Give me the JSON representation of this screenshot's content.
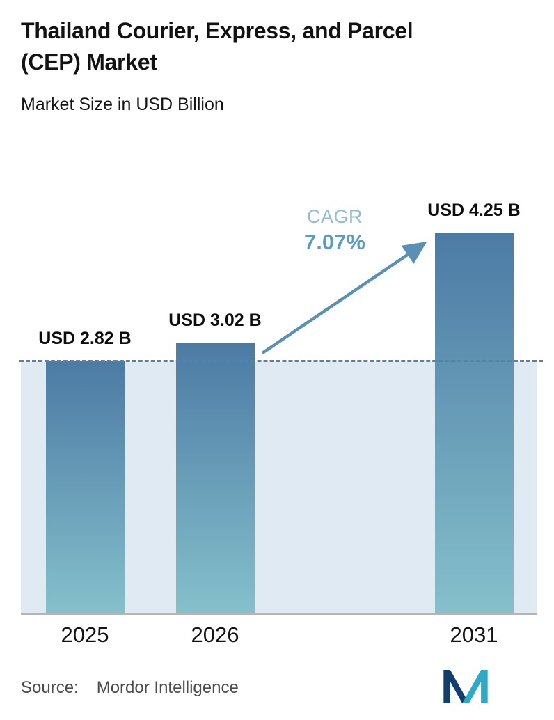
{
  "chart_data": {
    "type": "bar",
    "title": "Thailand Courier, Express, and Parcel (CEP) Market",
    "title_lines": [
      "Thailand Courier, Express, and Parcel",
      "(CEP) Market"
    ],
    "subtitle": "Market Size in USD Billion",
    "categories": [
      "2025",
      "2026",
      "2031"
    ],
    "values": [
      2.82,
      3.02,
      4.25
    ],
    "value_labels": [
      "USD 2.82 B",
      "USD 3.02 B",
      "USD 4.25 B"
    ],
    "unit": "USD Billion",
    "cagr": {
      "label": "CAGR",
      "value": "7.07%"
    },
    "reference_line_value": 2.82,
    "ylim": [
      0,
      4.6
    ],
    "grid": false,
    "legend": false,
    "colors": {
      "bar_gradient_top": "#4c7aa4",
      "bar_gradient_bottom": "#85c0cb",
      "reference_band": "#dfeaf2",
      "reference_line": "#4d86ab",
      "arrow": "#5a90b6",
      "cagr_label": "#93bbd5",
      "cagr_value": "#5d9bc3",
      "axis_line": "#b5b5b5"
    }
  },
  "footer": {
    "source_label": "Source:",
    "source_value": "Mordor Intelligence",
    "logo": "mordor-intelligence-logo",
    "logo_colors": {
      "navy": "#123e6e",
      "teal": "#2fa9c5"
    }
  }
}
